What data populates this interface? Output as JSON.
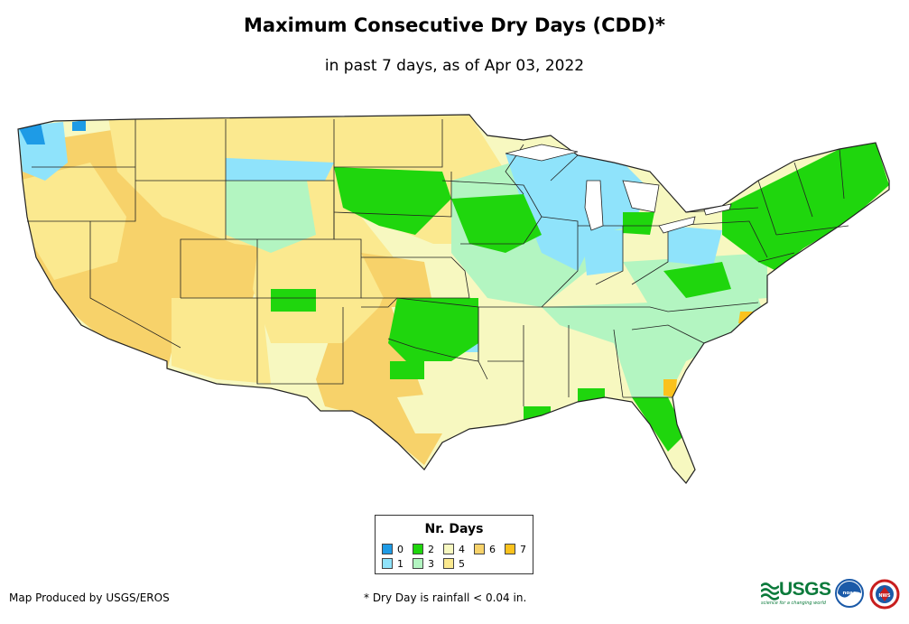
{
  "header": {
    "title": "Maximum Consecutive Dry Days (CDD)*",
    "subtitle": "in past 7 days, as of Apr 03, 2022"
  },
  "legend": {
    "title": "Nr. Days",
    "items": [
      {
        "label": "0",
        "color": "#1e9be6"
      },
      {
        "label": "1",
        "color": "#8fe3fb"
      },
      {
        "label": "2",
        "color": "#1fd60d"
      },
      {
        "label": "3",
        "color": "#b3f5c1"
      },
      {
        "label": "4",
        "color": "#f7f8c0"
      },
      {
        "label": "5",
        "color": "#fbe98f"
      },
      {
        "label": "6",
        "color": "#f7d26a"
      },
      {
        "label": "7",
        "color": "#fbc21d"
      }
    ]
  },
  "footer": {
    "producer": "Map Produced by USGS/EROS",
    "note": "* Dry Day is rainfall < 0.04 in."
  },
  "logos": {
    "usgs": "USGS",
    "usgs_tagline": "science for a changing world",
    "noaa": "noaa",
    "nws": "NWS"
  },
  "colors": {
    "state_border": "#222222",
    "usgs_green": "#0b7a3b",
    "noaa_blue": "#1b5aa8"
  }
}
